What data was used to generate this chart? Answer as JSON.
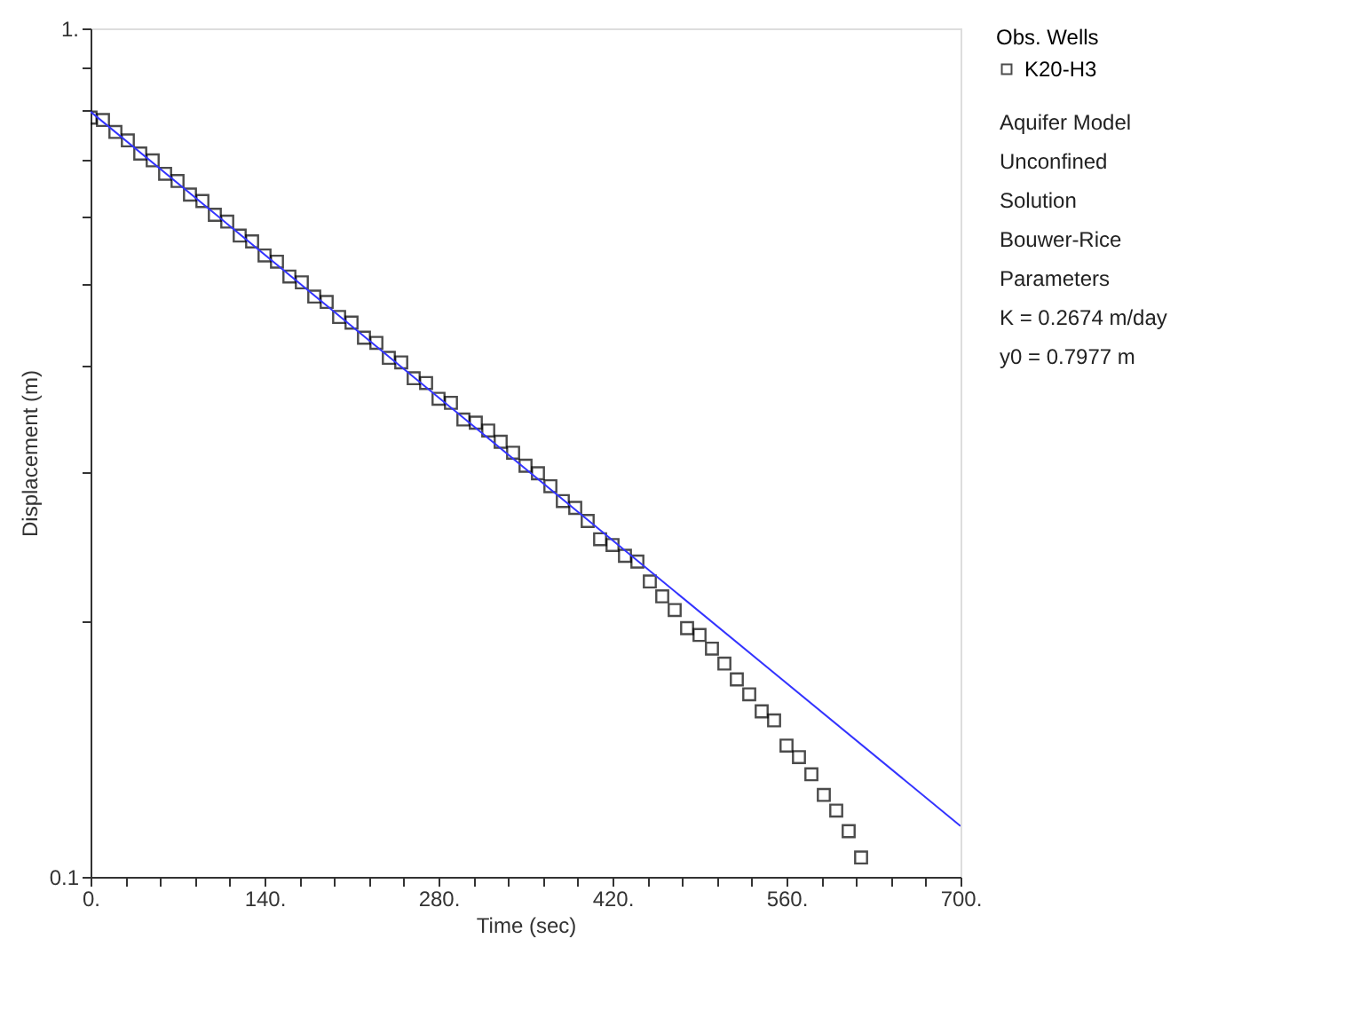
{
  "chart_data": {
    "type": "scatter",
    "xlabel": "Time (sec)",
    "ylabel": "Displacement (m)",
    "legend_title": "Obs. Wells",
    "log": "y",
    "grid": false,
    "legend": "top right",
    "xlim": [
      0,
      700
    ],
    "ylim": [
      0.1,
      1
    ],
    "xticks": [
      {
        "value": 0,
        "label": "0."
      },
      {
        "value": 28,
        "label": null
      },
      {
        "value": 56,
        "label": null
      },
      {
        "value": 84,
        "label": null
      },
      {
        "value": 112,
        "label": null
      },
      {
        "value": 140,
        "label": "140."
      },
      {
        "value": 168,
        "label": null
      },
      {
        "value": 196,
        "label": null
      },
      {
        "value": 224,
        "label": null
      },
      {
        "value": 252,
        "label": null
      },
      {
        "value": 280,
        "label": "280."
      },
      {
        "value": 308,
        "label": null
      },
      {
        "value": 336,
        "label": null
      },
      {
        "value": 364,
        "label": null
      },
      {
        "value": 392,
        "label": null
      },
      {
        "value": 420,
        "label": "420."
      },
      {
        "value": 448,
        "label": null
      },
      {
        "value": 476,
        "label": null
      },
      {
        "value": 504,
        "label": null
      },
      {
        "value": 532,
        "label": null
      },
      {
        "value": 560,
        "label": "560."
      },
      {
        "value": 588,
        "label": null
      },
      {
        "value": 616,
        "label": null
      },
      {
        "value": 644,
        "label": null
      },
      {
        "value": 672,
        "label": null
      },
      {
        "value": 700,
        "label": "700."
      }
    ],
    "yticks": [
      0.1,
      {
        "value": 0.2,
        "label": null
      },
      {
        "value": 0.3,
        "label": null
      },
      {
        "value": 0.4,
        "label": null
      },
      {
        "value": 0.5,
        "label": null
      },
      {
        "value": 0.6,
        "label": null
      },
      {
        "value": 0.7,
        "label": null
      },
      {
        "value": 0.8,
        "label": null
      },
      {
        "value": 0.9,
        "label": null
      },
      {
        "value": 1,
        "label": "1."
      }
    ],
    "series": [
      {
        "name": "K20-H3",
        "marker": "square",
        "color": "#000000",
        "x": [
          0,
          10,
          20,
          30,
          40,
          50,
          60,
          70,
          80,
          90,
          100,
          110,
          120,
          130,
          140,
          150,
          160,
          170,
          180,
          190,
          200,
          210,
          220,
          230,
          240,
          250,
          260,
          270,
          280,
          290,
          300,
          310,
          320,
          330,
          340,
          350,
          360,
          370,
          380,
          390,
          400,
          410,
          420,
          430,
          440,
          450,
          460,
          470,
          480,
          490,
          500,
          510,
          520,
          530,
          540,
          550,
          560,
          570,
          580,
          590,
          600,
          610,
          620
        ],
        "values": [
          0.785,
          0.78,
          0.755,
          0.738,
          0.712,
          0.699,
          0.674,
          0.661,
          0.637,
          0.626,
          0.603,
          0.592,
          0.57,
          0.561,
          0.54,
          0.531,
          0.51,
          0.502,
          0.483,
          0.476,
          0.457,
          0.45,
          0.432,
          0.426,
          0.409,
          0.404,
          0.387,
          0.382,
          0.366,
          0.362,
          0.346,
          0.343,
          0.3358,
          0.3257,
          0.3162,
          0.3052,
          0.299,
          0.2887,
          0.2773,
          0.2722,
          0.2627,
          0.25,
          0.2461,
          0.239,
          0.2353,
          0.2229,
          0.2141,
          0.2063,
          0.1964,
          0.1928,
          0.1858,
          0.1784,
          0.1709,
          0.1641,
          0.1567,
          0.1529,
          0.1428,
          0.1384,
          0.1321,
          0.1249,
          0.1197,
          0.1132,
          0.1054
        ]
      },
      {
        "type": "line",
        "marker": "none",
        "color": "#3333ff",
        "line_style": "solid",
        "x": [
          0,
          700
        ],
        "values": [
          0.7977,
          0.1148
        ]
      }
    ],
    "annotations": [
      "Aquifer Model",
      "Unconfined",
      "Solution",
      "Bouwer-Rice",
      "Parameters",
      "K  = 0.2674 m/day",
      "y0 = 0.7977 m"
    ]
  }
}
